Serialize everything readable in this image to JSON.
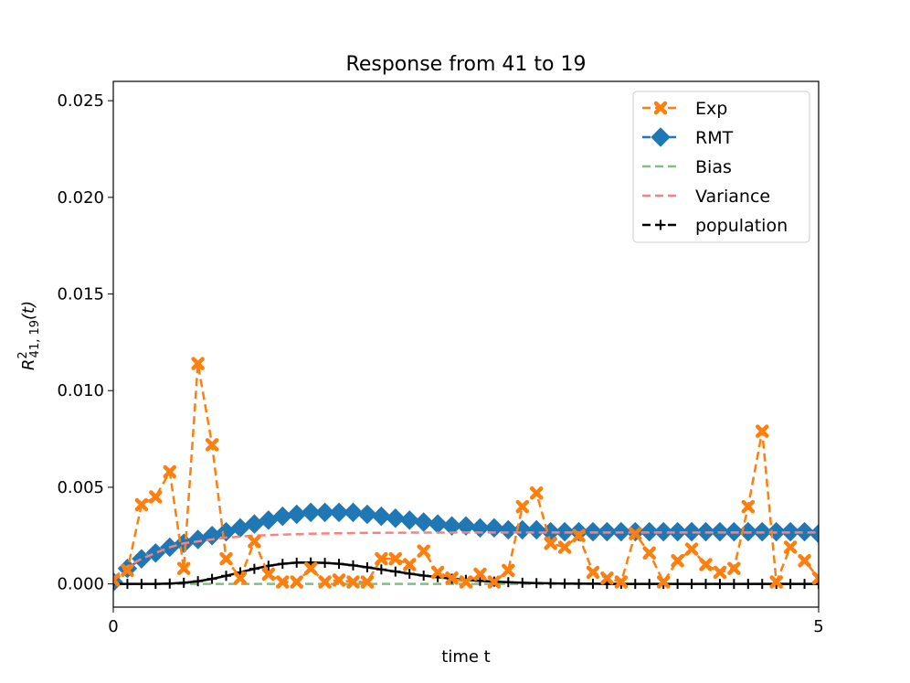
{
  "chart_data": {
    "type": "line",
    "title": "Response from 41 to 19",
    "xlabel": "time t",
    "ylabel_base": "R",
    "ylabel_sup": "2",
    "ylabel_sub": "41, 19",
    "ylabel_arg": "(t)",
    "xlim": [
      0,
      5
    ],
    "ylim": [
      -0.0012,
      0.026
    ],
    "xticks": [
      0,
      5
    ],
    "xtick_labels": [
      "0",
      "5"
    ],
    "yticks": [
      0.0,
      0.005,
      0.01,
      0.015,
      0.02,
      0.025
    ],
    "ytick_labels": [
      "0.000",
      "0.005",
      "0.010",
      "0.015",
      "0.020",
      "0.025"
    ],
    "legend_position": "top-right",
    "colors": {
      "exp": "#ff7f0e",
      "rmt": "#1f77b4",
      "bias": "#7fbf7f",
      "variance": "#ff7f7f",
      "population": "#000000"
    },
    "series": [
      {
        "name": "Exp",
        "style": "dashed-x",
        "x": [
          0,
          0.1,
          0.2,
          0.3,
          0.4,
          0.5,
          0.6,
          0.7,
          0.8,
          0.9,
          1.0,
          1.1,
          1.2,
          1.3,
          1.4,
          1.5,
          1.6,
          1.7,
          1.8,
          1.9,
          2.0,
          2.1,
          2.2,
          2.3,
          2.4,
          2.5,
          2.6,
          2.7,
          2.8,
          2.9,
          3.0,
          3.1,
          3.2,
          3.3,
          3.4,
          3.5,
          3.6,
          3.7,
          3.8,
          3.9,
          4.0,
          4.1,
          4.2,
          4.3,
          4.4,
          4.5,
          4.6,
          4.7,
          4.8,
          4.9,
          5.0
        ],
        "values": [
          0.0002,
          0.0007,
          0.0041,
          0.0045,
          0.0058,
          0.0008,
          0.0114,
          0.0072,
          0.0013,
          0.0003,
          0.0022,
          0.0005,
          0.0001,
          0.0001,
          0.0008,
          0.0001,
          0.0002,
          0.0001,
          0.0001,
          0.0013,
          0.0013,
          0.001,
          0.0017,
          0.0006,
          0.0003,
          0.0001,
          0.0005,
          0.0001,
          0.0007,
          0.004,
          0.0047,
          0.0021,
          0.0019,
          0.0025,
          0.0006,
          0.0003,
          0.0001,
          0.0026,
          0.0016,
          0.0001,
          0.0012,
          0.0018,
          0.001,
          0.0006,
          0.0008,
          0.004,
          0.0079,
          0.0001,
          0.0019,
          0.0012,
          0.0003
        ]
      },
      {
        "name": "RMT",
        "style": "dashed-diamond",
        "x": [
          0,
          0.1,
          0.2,
          0.3,
          0.4,
          0.5,
          0.6,
          0.7,
          0.8,
          0.9,
          1.0,
          1.1,
          1.2,
          1.3,
          1.4,
          1.5,
          1.6,
          1.7,
          1.8,
          1.9,
          2.0,
          2.1,
          2.2,
          2.3,
          2.4,
          2.5,
          2.6,
          2.7,
          2.8,
          2.9,
          3.0,
          3.1,
          3.2,
          3.3,
          3.4,
          3.5,
          3.6,
          3.7,
          3.8,
          3.9,
          4.0,
          4.1,
          4.2,
          4.3,
          4.4,
          4.5,
          4.6,
          4.7,
          4.8,
          4.9,
          5.0
        ],
        "values": [
          0.0001,
          0.0008,
          0.0013,
          0.0016,
          0.0019,
          0.0021,
          0.0023,
          0.0025,
          0.0027,
          0.0029,
          0.0031,
          0.0033,
          0.0035,
          0.0036,
          0.0037,
          0.0037,
          0.0037,
          0.0037,
          0.0036,
          0.0035,
          0.0034,
          0.0033,
          0.0032,
          0.0031,
          0.003,
          0.003,
          0.0029,
          0.0029,
          0.0028,
          0.0028,
          0.0028,
          0.0027,
          0.0027,
          0.0027,
          0.0027,
          0.0027,
          0.0027,
          0.0027,
          0.0027,
          0.0027,
          0.0027,
          0.0027,
          0.0027,
          0.0027,
          0.0027,
          0.0027,
          0.0027,
          0.0027,
          0.0027,
          0.0027,
          0.0026
        ]
      },
      {
        "name": "Bias",
        "style": "dashed",
        "x": [
          0,
          5
        ],
        "values": [
          0.0,
          0.0
        ]
      },
      {
        "name": "Variance",
        "style": "dashed",
        "x": [
          0,
          0.1,
          0.2,
          0.3,
          0.4,
          0.5,
          0.6,
          0.7,
          0.8,
          1.0,
          1.2,
          1.4,
          1.6,
          1.8,
          2.0,
          2.5,
          3.0,
          3.5,
          4.0,
          4.5,
          5.0
        ],
        "values": [
          0.0003,
          0.0009,
          0.0013,
          0.0016,
          0.0019,
          0.0021,
          0.0022,
          0.0023,
          0.0024,
          0.0025,
          0.00255,
          0.0026,
          0.00262,
          0.00264,
          0.00265,
          0.00266,
          0.00266,
          0.00266,
          0.00266,
          0.00266,
          0.00266
        ]
      },
      {
        "name": "population",
        "style": "solid-plus",
        "x": [
          0,
          0.1,
          0.2,
          0.3,
          0.4,
          0.5,
          0.6,
          0.7,
          0.8,
          0.9,
          1.0,
          1.1,
          1.2,
          1.3,
          1.4,
          1.5,
          1.6,
          1.7,
          1.8,
          1.9,
          2.0,
          2.1,
          2.2,
          2.3,
          2.4,
          2.5,
          2.6,
          2.7,
          2.8,
          2.9,
          3.0,
          3.1,
          3.2,
          3.3,
          3.4,
          3.5,
          3.6,
          3.7,
          3.8,
          3.9,
          4.0,
          4.1,
          4.2,
          4.3,
          4.4,
          4.5,
          4.6,
          4.7,
          4.8,
          4.9,
          5.0
        ],
        "values": [
          0.0,
          0.0,
          0.0,
          0.0,
          2e-05,
          6e-05,
          0.00014,
          0.00026,
          0.00042,
          0.0006,
          0.00078,
          0.00094,
          0.00104,
          0.0011,
          0.00111,
          0.00109,
          0.00104,
          0.00096,
          0.00086,
          0.00075,
          0.00064,
          0.00053,
          0.00043,
          0.00035,
          0.00027,
          0.00021,
          0.00016,
          0.00012,
          9e-05,
          6e-05,
          4e-05,
          3e-05,
          2e-05,
          1e-05,
          1e-05,
          0.0,
          0.0,
          0.0,
          0.0,
          0.0,
          0.0,
          0.0,
          0.0,
          0.0,
          0.0,
          0.0,
          0.0,
          0.0,
          0.0,
          0.0,
          0.0
        ]
      }
    ]
  }
}
